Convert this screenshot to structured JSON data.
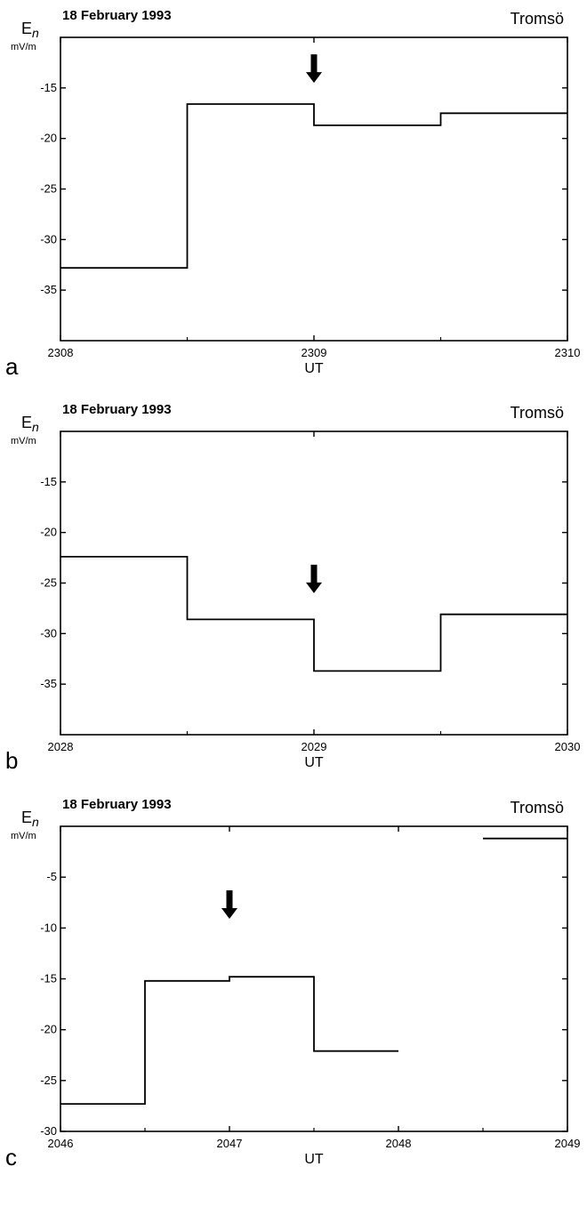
{
  "chart_data": [
    {
      "type": "line",
      "panel_label": "a",
      "date": "18 February 1993",
      "station": "Tromsö",
      "ylabel": "E",
      "ylabel_sub": "n",
      "yunit": "mV/m",
      "xlabel": "UT",
      "xlim": [
        2308,
        2310
      ],
      "ylim": [
        -40,
        -10
      ],
      "xticks": [
        {
          "v": 2308,
          "l": "2308"
        },
        {
          "v": 2309,
          "l": "2309"
        },
        {
          "v": 2310,
          "l": "2310"
        }
      ],
      "yticks": [
        {
          "v": -15,
          "l": "-15"
        },
        {
          "v": -20,
          "l": "-20"
        },
        {
          "v": -25,
          "l": "-25"
        },
        {
          "v": -30,
          "l": "-30"
        },
        {
          "v": -35,
          "l": "-35"
        }
      ],
      "arrow_x": 2309,
      "arrow_y": -14.5,
      "segments": [
        [
          [
            2308,
            -32.8
          ],
          [
            2308.5,
            -32.8
          ],
          [
            2308.5,
            -16.6
          ],
          [
            2309,
            -16.6
          ],
          [
            2309,
            -18.7
          ],
          [
            2309.5,
            -18.7
          ],
          [
            2309.5,
            -17.5
          ],
          [
            2310,
            -17.5
          ]
        ]
      ]
    },
    {
      "type": "line",
      "panel_label": "b",
      "date": "18 February 1993",
      "station": "Tromsö",
      "ylabel": "E",
      "ylabel_sub": "n",
      "yunit": "mV/m",
      "xlabel": "UT",
      "xlim": [
        2028,
        2030
      ],
      "ylim": [
        -40,
        -10
      ],
      "xticks": [
        {
          "v": 2028,
          "l": "2028"
        },
        {
          "v": 2029,
          "l": "2029"
        },
        {
          "v": 2030,
          "l": "2030"
        }
      ],
      "yticks": [
        {
          "v": -15,
          "l": "-15"
        },
        {
          "v": -20,
          "l": "-20"
        },
        {
          "v": -25,
          "l": "-25"
        },
        {
          "v": -30,
          "l": "-30"
        },
        {
          "v": -35,
          "l": "-35"
        }
      ],
      "arrow_x": 2029,
      "arrow_y": -26.0,
      "segments": [
        [
          [
            2028,
            -22.4
          ],
          [
            2028.5,
            -22.4
          ],
          [
            2028.5,
            -28.6
          ],
          [
            2029,
            -28.6
          ],
          [
            2029,
            -33.7
          ],
          [
            2029.5,
            -33.7
          ],
          [
            2029.5,
            -28.1
          ],
          [
            2030,
            -28.1
          ]
        ]
      ]
    },
    {
      "type": "line",
      "panel_label": "c",
      "date": "18 February 1993",
      "station": "Tromsö",
      "ylabel": "E",
      "ylabel_sub": "n",
      "yunit": "mV/m",
      "xlabel": "UT",
      "xlim": [
        2046,
        2049
      ],
      "ylim": [
        -30,
        0
      ],
      "xticks": [
        {
          "v": 2046,
          "l": "2046"
        },
        {
          "v": 2047,
          "l": "2047"
        },
        {
          "v": 2048,
          "l": "2048"
        },
        {
          "v": 2049,
          "l": "2049"
        }
      ],
      "yticks": [
        {
          "v": -5,
          "l": "-5"
        },
        {
          "v": -10,
          "l": "-10"
        },
        {
          "v": -15,
          "l": "-15"
        },
        {
          "v": -20,
          "l": "-20"
        },
        {
          "v": -25,
          "l": "-25"
        },
        {
          "v": -30,
          "l": "-30"
        }
      ],
      "arrow_x": 2047,
      "arrow_y": -9.1,
      "segments": [
        [
          [
            2046,
            -27.3
          ],
          [
            2046.5,
            -27.3
          ],
          [
            2046.5,
            -15.2
          ],
          [
            2047,
            -15.2
          ],
          [
            2047,
            -14.8
          ],
          [
            2047.5,
            -14.8
          ],
          [
            2047.5,
            -22.1
          ],
          [
            2048,
            -22.1
          ]
        ],
        [
          [
            2048.5,
            -1.2
          ],
          [
            2049,
            -1.2
          ]
        ]
      ]
    }
  ]
}
